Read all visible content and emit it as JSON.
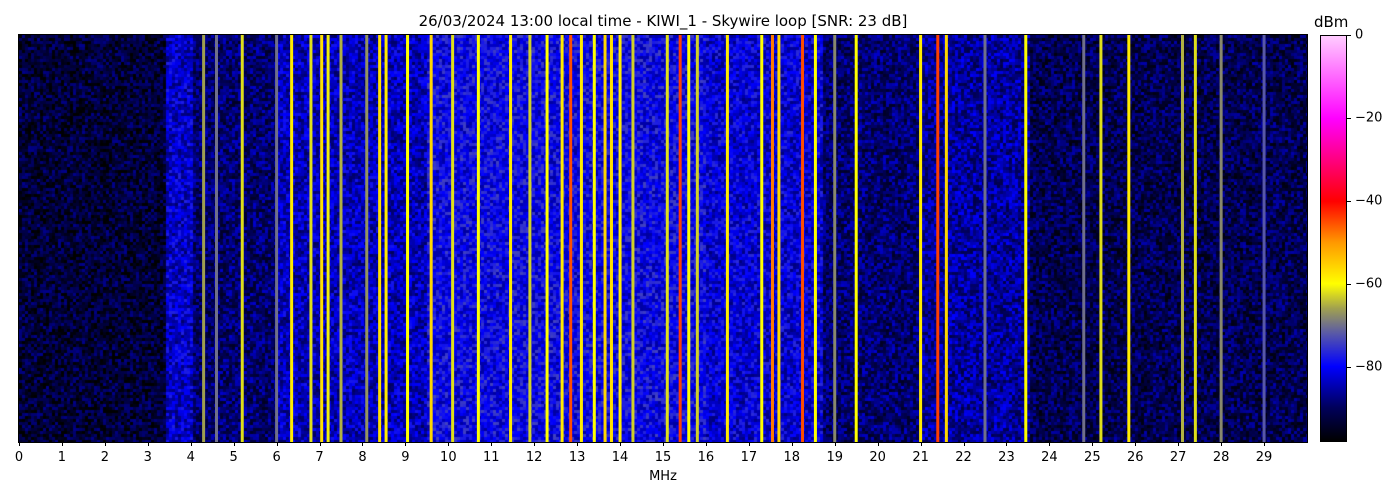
{
  "chart_data": {
    "type": "heatmap",
    "title": "26/03/2024 13:00 local time - KIWI_1 - Skywire loop [SNR: 23 dB]",
    "xlabel": "MHz",
    "ylabel": "",
    "xlim": [
      0,
      30
    ],
    "x_ticks": [
      "0",
      "1",
      "2",
      "3",
      "4",
      "5",
      "6",
      "7",
      "8",
      "9",
      "10",
      "11",
      "12",
      "13",
      "14",
      "15",
      "16",
      "17",
      "18",
      "19",
      "20",
      "21",
      "22",
      "23",
      "24",
      "25",
      "26",
      "27",
      "28",
      "29"
    ],
    "y_axis_ticks_shown": false,
    "colorbar": {
      "label": "dBm",
      "range": [
        -98,
        0
      ],
      "ticks": [
        "0",
        "−20",
        "−40",
        "−60",
        "−80"
      ],
      "tick_values": [
        0,
        -20,
        -40,
        -60,
        -80
      ],
      "colormap_stops": [
        {
          "dbm": -98,
          "color": "#000000"
        },
        {
          "dbm": -90,
          "color": "#00005a"
        },
        {
          "dbm": -80,
          "color": "#0000ff"
        },
        {
          "dbm": -72,
          "color": "#5858a8"
        },
        {
          "dbm": -66,
          "color": "#a0a050"
        },
        {
          "dbm": -60,
          "color": "#ffff00"
        },
        {
          "dbm": -50,
          "color": "#ff9900"
        },
        {
          "dbm": -40,
          "color": "#ff0000"
        },
        {
          "dbm": -20,
          "color": "#ff00ff"
        },
        {
          "dbm": 0,
          "color": "#ffccff"
        }
      ]
    },
    "noise_floor_dbm": [
      {
        "from_mhz": 0,
        "to_mhz": 3.4,
        "level": -93
      },
      {
        "from_mhz": 3.4,
        "to_mhz": 4.0,
        "level": -83
      },
      {
        "from_mhz": 4.0,
        "to_mhz": 6.0,
        "level": -89
      },
      {
        "from_mhz": 6.0,
        "to_mhz": 9.5,
        "level": -84
      },
      {
        "from_mhz": 9.5,
        "to_mhz": 16.0,
        "level": -80
      },
      {
        "from_mhz": 16.0,
        "to_mhz": 18.7,
        "level": -82
      },
      {
        "from_mhz": 18.7,
        "to_mhz": 21.0,
        "level": -89
      },
      {
        "from_mhz": 21.0,
        "to_mhz": 23.5,
        "level": -86
      },
      {
        "from_mhz": 23.5,
        "to_mhz": 30.0,
        "level": -91
      }
    ],
    "signals": [
      {
        "mhz": 4.3,
        "dbm": -66
      },
      {
        "mhz": 4.6,
        "dbm": -70
      },
      {
        "mhz": 5.2,
        "dbm": -62
      },
      {
        "mhz": 6.0,
        "dbm": -70
      },
      {
        "mhz": 6.35,
        "dbm": -58
      },
      {
        "mhz": 6.8,
        "dbm": -62
      },
      {
        "mhz": 7.05,
        "dbm": -57
      },
      {
        "mhz": 7.2,
        "dbm": -61
      },
      {
        "mhz": 7.5,
        "dbm": -65
      },
      {
        "mhz": 8.1,
        "dbm": -67
      },
      {
        "mhz": 8.4,
        "dbm": -57
      },
      {
        "mhz": 8.55,
        "dbm": -58
      },
      {
        "mhz": 9.05,
        "dbm": -60
      },
      {
        "mhz": 9.6,
        "dbm": -56
      },
      {
        "mhz": 10.1,
        "dbm": -62
      },
      {
        "mhz": 10.7,
        "dbm": -60
      },
      {
        "mhz": 11.45,
        "dbm": -58
      },
      {
        "mhz": 11.9,
        "dbm": -63
      },
      {
        "mhz": 12.3,
        "dbm": -60
      },
      {
        "mhz": 12.65,
        "dbm": -58
      },
      {
        "mhz": 12.85,
        "dbm": -45
      },
      {
        "mhz": 13.1,
        "dbm": -58
      },
      {
        "mhz": 13.4,
        "dbm": -60
      },
      {
        "mhz": 13.65,
        "dbm": -56
      },
      {
        "mhz": 13.8,
        "dbm": -57
      },
      {
        "mhz": 14.0,
        "dbm": -58
      },
      {
        "mhz": 14.3,
        "dbm": -63
      },
      {
        "mhz": 15.1,
        "dbm": -62
      },
      {
        "mhz": 15.4,
        "dbm": -44
      },
      {
        "mhz": 15.6,
        "dbm": -60
      },
      {
        "mhz": 15.8,
        "dbm": -63
      },
      {
        "mhz": 16.5,
        "dbm": -58
      },
      {
        "mhz": 17.3,
        "dbm": -60
      },
      {
        "mhz": 17.55,
        "dbm": -48
      },
      {
        "mhz": 17.7,
        "dbm": -56
      },
      {
        "mhz": 18.25,
        "dbm": -45
      },
      {
        "mhz": 18.55,
        "dbm": -60
      },
      {
        "mhz": 19.0,
        "dbm": -68
      },
      {
        "mhz": 19.5,
        "dbm": -60
      },
      {
        "mhz": 21.0,
        "dbm": -58
      },
      {
        "mhz": 21.4,
        "dbm": -44
      },
      {
        "mhz": 21.6,
        "dbm": -56
      },
      {
        "mhz": 22.5,
        "dbm": -70
      },
      {
        "mhz": 23.45,
        "dbm": -60
      },
      {
        "mhz": 24.8,
        "dbm": -70
      },
      {
        "mhz": 25.2,
        "dbm": -62
      },
      {
        "mhz": 25.85,
        "dbm": -58
      },
      {
        "mhz": 27.1,
        "dbm": -65
      },
      {
        "mhz": 27.4,
        "dbm": -62
      },
      {
        "mhz": 28.0,
        "dbm": -68
      },
      {
        "mhz": 29.0,
        "dbm": -72
      }
    ]
  }
}
